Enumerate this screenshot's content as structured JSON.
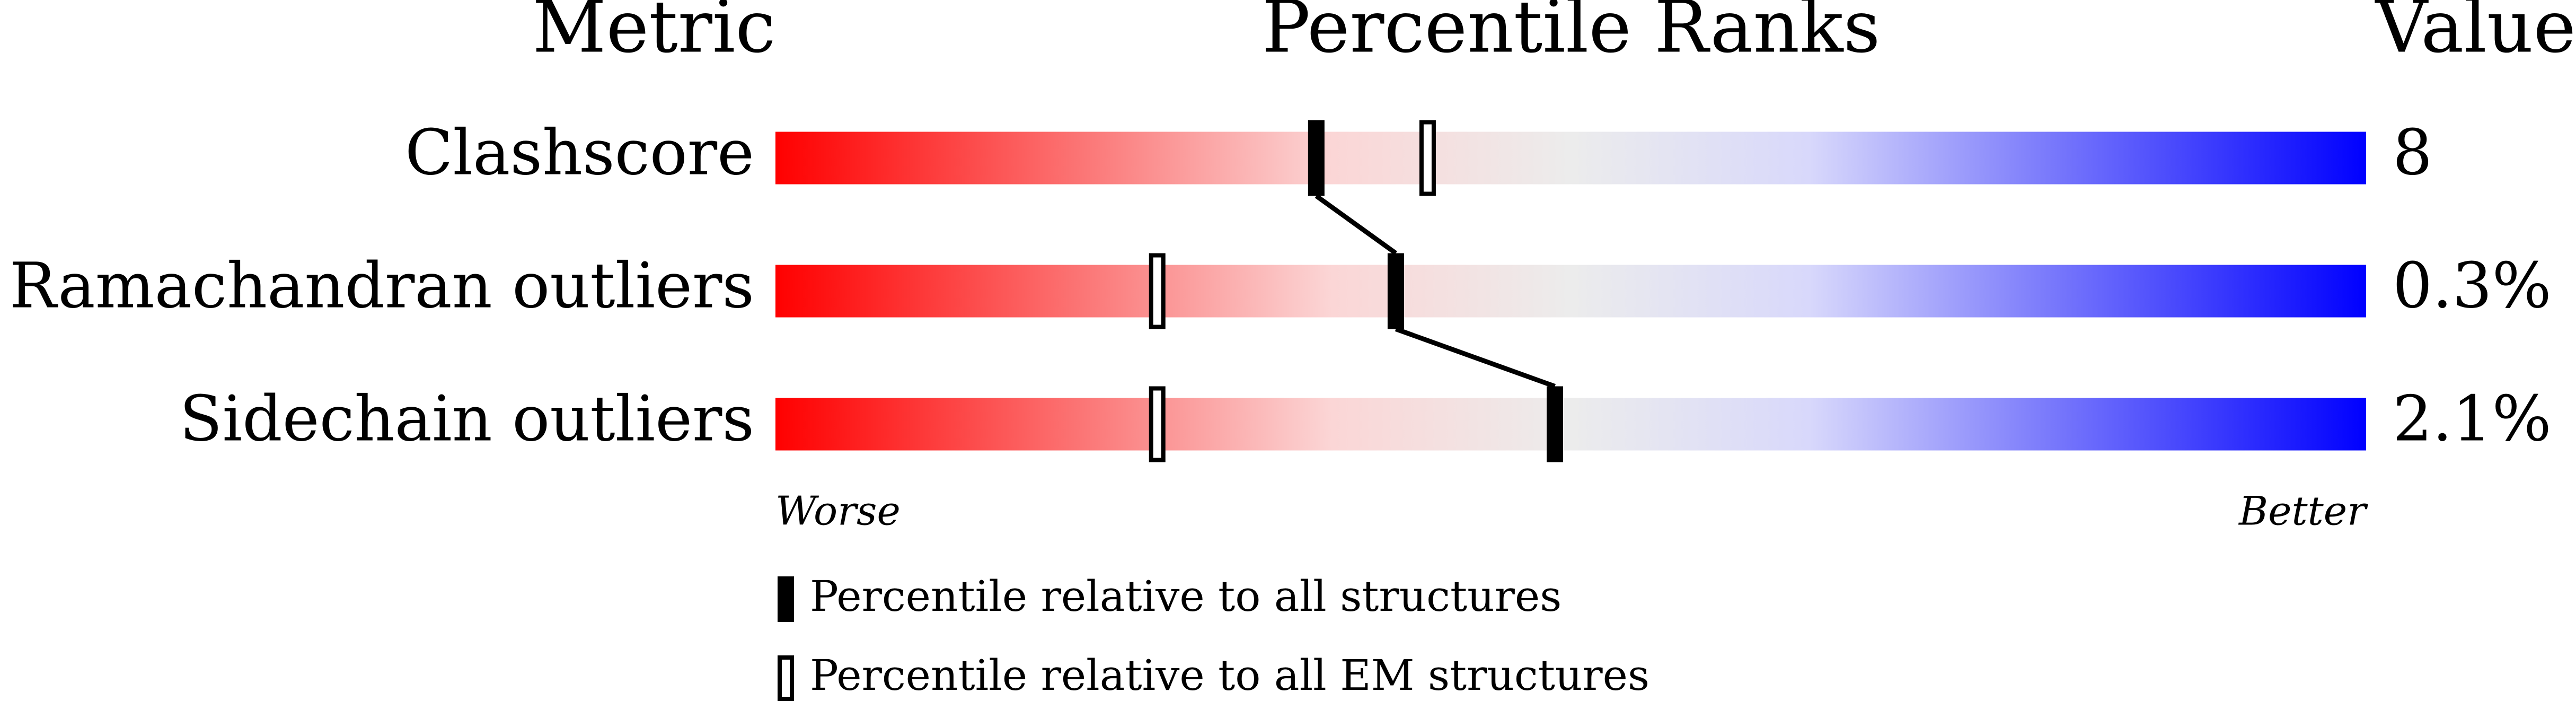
{
  "chart_data": {
    "type": "percentile_slider",
    "header": {
      "metric": "Metric",
      "title": "Percentile Ranks",
      "value": "Value"
    },
    "categories": [
      "Clashscore",
      "Ramachandran outliers",
      "Sidechain outliers"
    ],
    "metric_values": [
      "8",
      "0.3%",
      "2.1%"
    ],
    "xlim": [
      0,
      100
    ],
    "low_label": "Worse",
    "high_label": "Better",
    "series": [
      {
        "name": "Percentile relative to all structures",
        "color": "#000000",
        "marker": "filled",
        "values": [
          34,
          39,
          49
        ]
      },
      {
        "name": "Percentile relative to all EM structures",
        "color": "#000000",
        "marker": "hollow",
        "values": [
          41,
          24,
          24
        ]
      }
    ]
  }
}
